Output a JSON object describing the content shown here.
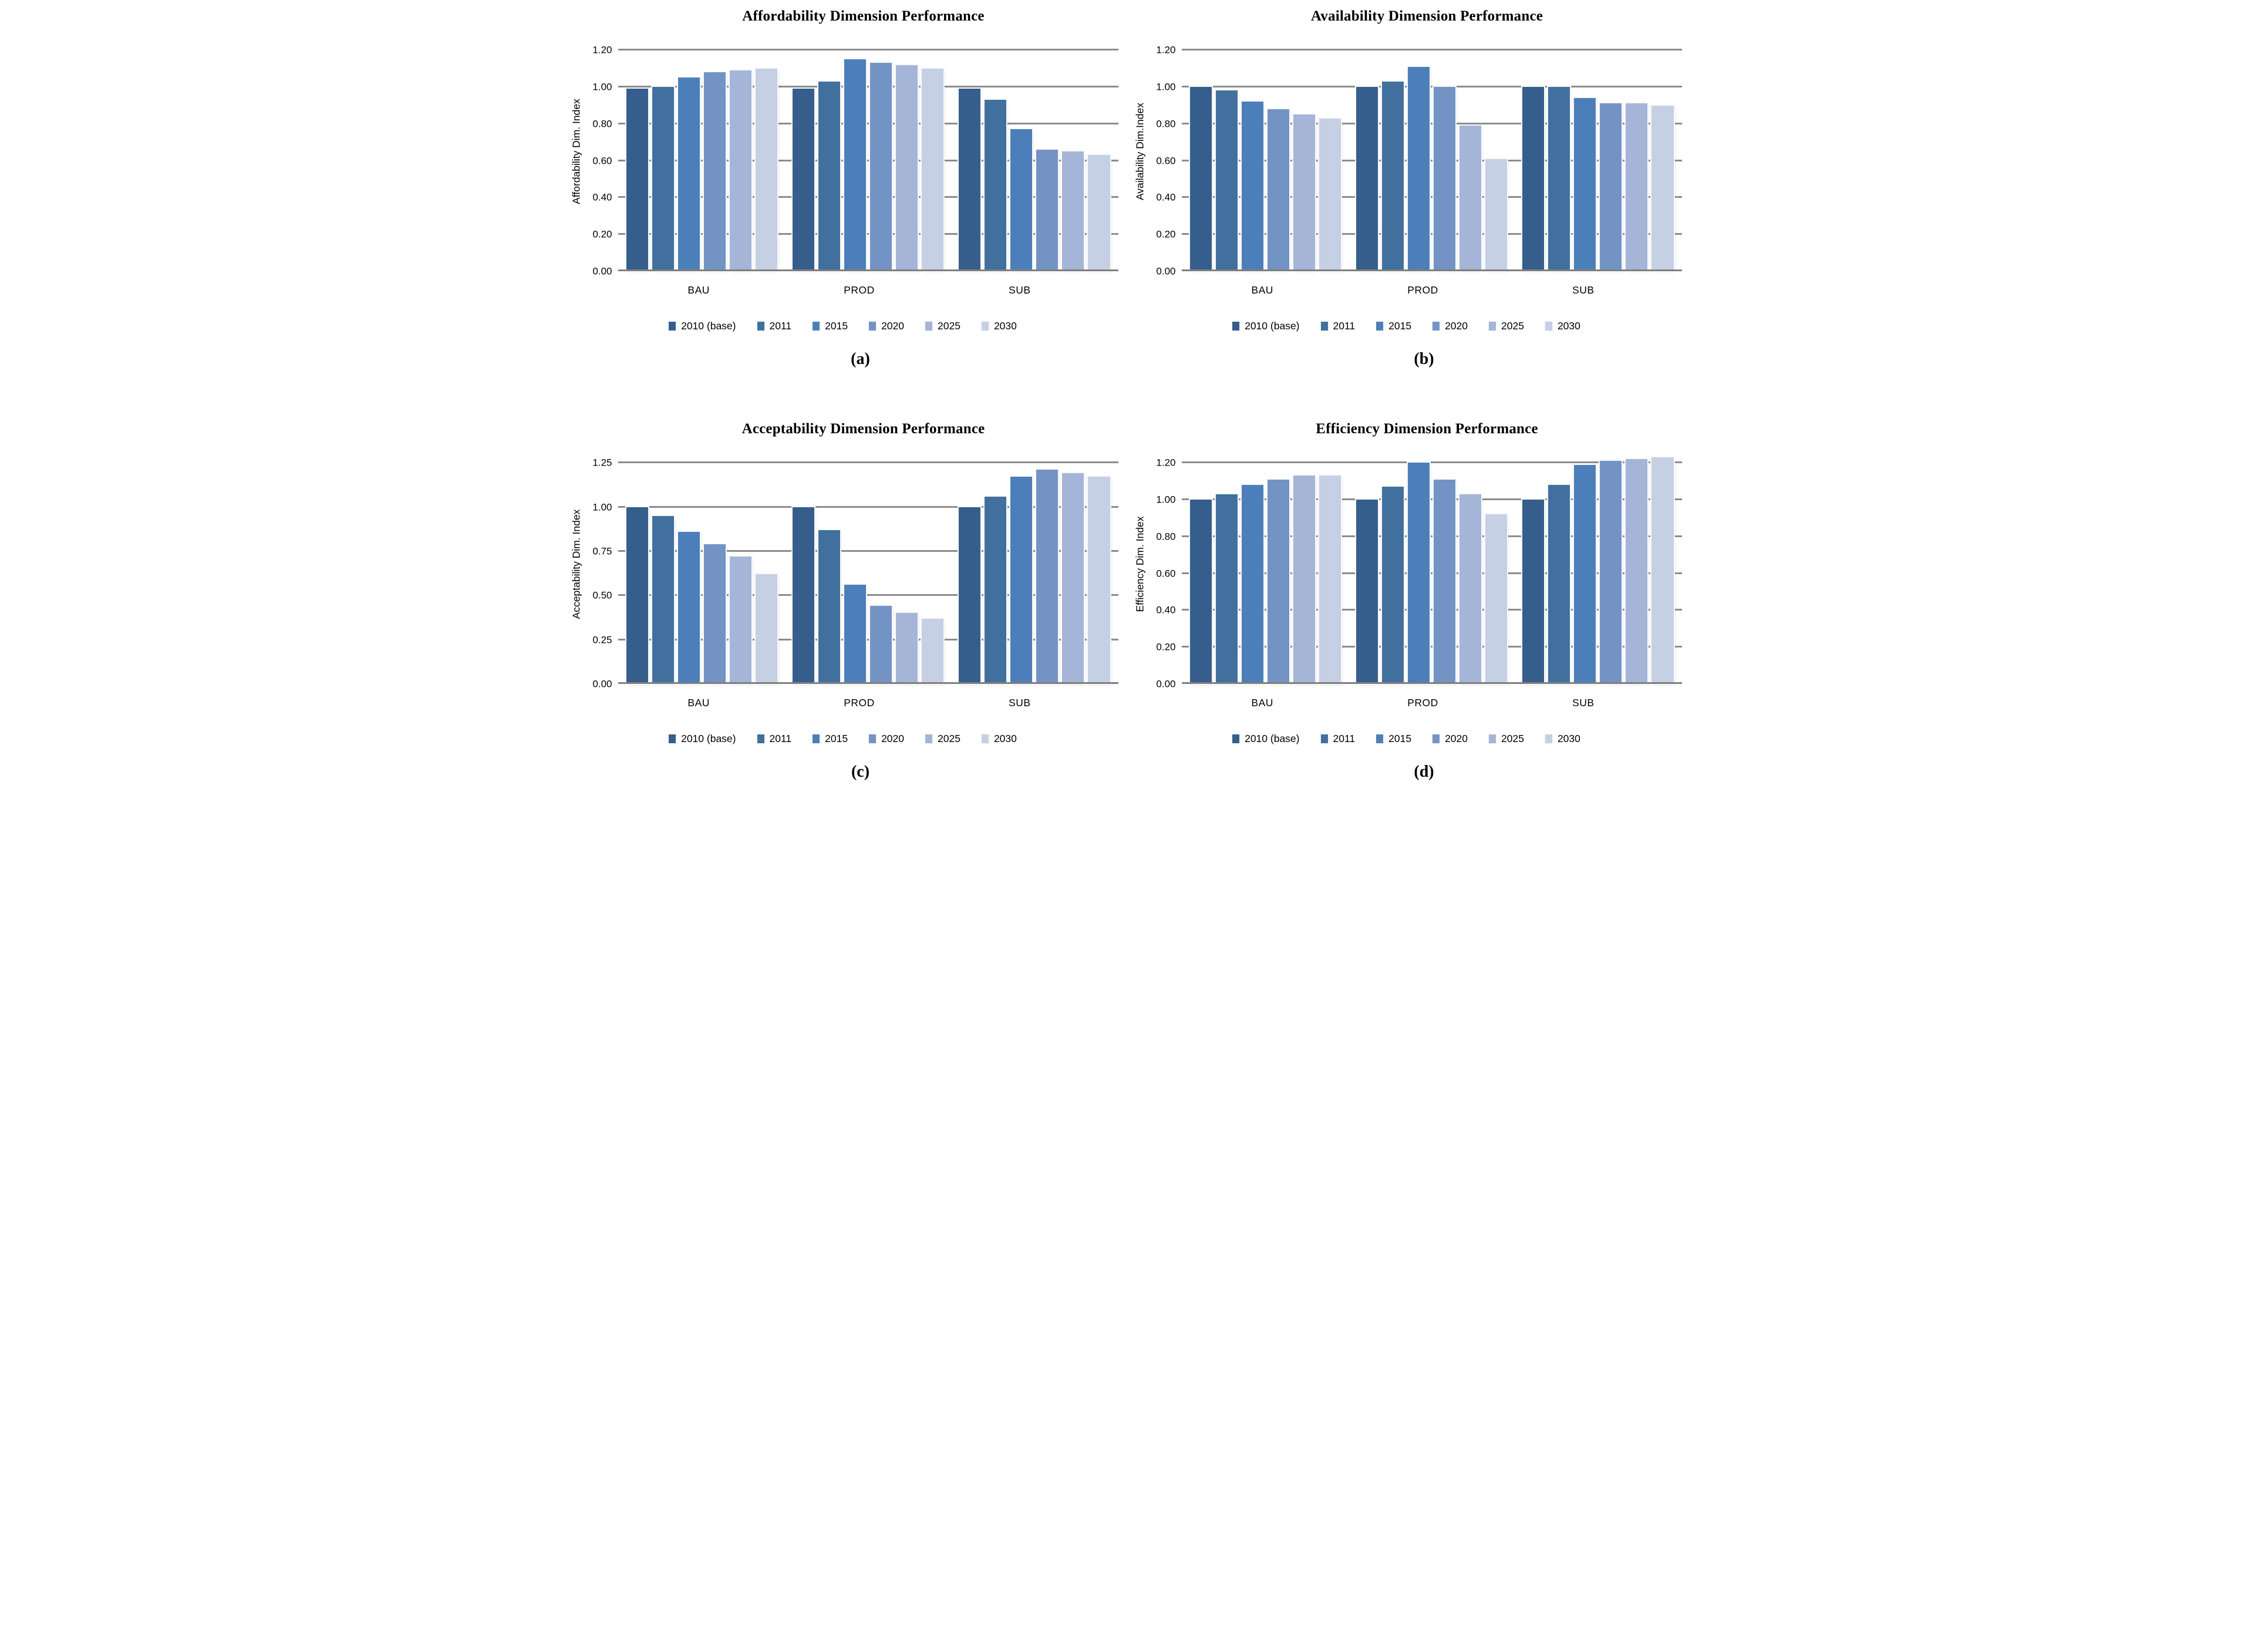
{
  "styles": {
    "background": "#ffffff",
    "gridline_color": "#8c8c8c",
    "axis_color": "#7f7f7f",
    "text_color": "#000000"
  },
  "series_colors": [
    "#365E8D",
    "#41709F",
    "#4C7FB9",
    "#7493C5",
    "#A5B5D7",
    "#C6D0E4"
  ],
  "chart_data": [
    {
      "type": "bar",
      "title": "Affordability Dimension Performance",
      "caption": "(a)",
      "xlabel": "",
      "ylabel": "Affordability Dim. Index",
      "categories": [
        "BAU",
        "PROD",
        "SUB"
      ],
      "series": [
        {
          "name": "2010 (base)",
          "values": [
            0.99,
            0.99,
            0.99
          ]
        },
        {
          "name": "2011",
          "values": [
            1.0,
            1.03,
            0.93
          ]
        },
        {
          "name": "2015",
          "values": [
            1.05,
            1.15,
            0.77
          ]
        },
        {
          "name": "2020",
          "values": [
            1.08,
            1.13,
            0.66
          ]
        },
        {
          "name": "2025",
          "values": [
            1.09,
            1.12,
            0.65
          ]
        },
        {
          "name": "2030",
          "values": [
            1.1,
            1.1,
            0.63
          ]
        }
      ],
      "ylim": [
        0.0,
        1.2
      ],
      "yticks": [
        "1.20",
        "1.00",
        "0.80",
        "0.60",
        "0.40",
        "0.20",
        "0.00"
      ],
      "scale_max": 1.3,
      "grid": true,
      "legend_position": "bottom"
    },
    {
      "type": "bar",
      "title": "Availability Dimension Performance",
      "caption": "(b)",
      "xlabel": "",
      "ylabel": "Availability Dim.Index",
      "categories": [
        "BAU",
        "PROD",
        "SUB"
      ],
      "series": [
        {
          "name": "2010 (base)",
          "values": [
            1.0,
            1.0,
            1.0
          ]
        },
        {
          "name": "2011",
          "values": [
            0.98,
            1.03,
            1.0
          ]
        },
        {
          "name": "2015",
          "values": [
            0.92,
            1.11,
            0.94
          ]
        },
        {
          "name": "2020",
          "values": [
            0.88,
            1.0,
            0.91
          ]
        },
        {
          "name": "2025",
          "values": [
            0.85,
            0.79,
            0.91
          ]
        },
        {
          "name": "2030",
          "values": [
            0.83,
            0.61,
            0.9
          ]
        }
      ],
      "ylim": [
        0.0,
        1.2
      ],
      "yticks": [
        "1.20",
        "1.00",
        "0.80",
        "0.60",
        "0.40",
        "0.20",
        "0.00"
      ],
      "scale_max": 1.3,
      "grid": true,
      "legend_position": "bottom"
    },
    {
      "type": "bar",
      "title": "Acceptability Dimension Performance",
      "caption": "(c)",
      "xlabel": "",
      "ylabel": "Acceptability Dim. Index",
      "categories": [
        "BAU",
        "PROD",
        "SUB"
      ],
      "series": [
        {
          "name": "2010 (base)",
          "values": [
            1.0,
            1.0,
            1.0
          ]
        },
        {
          "name": "2011",
          "values": [
            0.95,
            0.87,
            1.06
          ]
        },
        {
          "name": "2015",
          "values": [
            0.86,
            0.56,
            1.17
          ]
        },
        {
          "name": "2020",
          "values": [
            0.79,
            0.44,
            1.21
          ]
        },
        {
          "name": "2025",
          "values": [
            0.72,
            0.4,
            1.19
          ]
        },
        {
          "name": "2030",
          "values": [
            0.62,
            0.37,
            1.17
          ]
        }
      ],
      "ylim": [
        0.0,
        1.25
      ],
      "yticks": [
        "1.25",
        "1.00",
        "0.75",
        "0.50",
        "0.25",
        "0.00"
      ],
      "scale_max": 1.354,
      "grid": true,
      "legend_position": "bottom"
    },
    {
      "type": "bar",
      "title": "Efficiency Dimension Performance",
      "caption": "(d)",
      "xlabel": "",
      "ylabel": "Efficiency Dim. Index",
      "categories": [
        "BAU",
        "PROD",
        "SUB"
      ],
      "series": [
        {
          "name": "2010 (base)",
          "values": [
            1.0,
            1.0,
            1.0
          ]
        },
        {
          "name": "2011",
          "values": [
            1.03,
            1.07,
            1.08
          ]
        },
        {
          "name": "2015",
          "values": [
            1.08,
            1.2,
            1.19
          ]
        },
        {
          "name": "2020",
          "values": [
            1.11,
            1.11,
            1.21
          ]
        },
        {
          "name": "2025",
          "values": [
            1.13,
            1.03,
            1.22
          ]
        },
        {
          "name": "2030",
          "values": [
            1.13,
            0.92,
            1.23
          ]
        }
      ],
      "ylim": [
        0.0,
        1.2
      ],
      "yticks": [
        "1.20",
        "1.00",
        "0.80",
        "0.60",
        "0.40",
        "0.20",
        "0.00"
      ],
      "scale_max": 1.3,
      "grid": true,
      "legend_position": "bottom"
    }
  ]
}
